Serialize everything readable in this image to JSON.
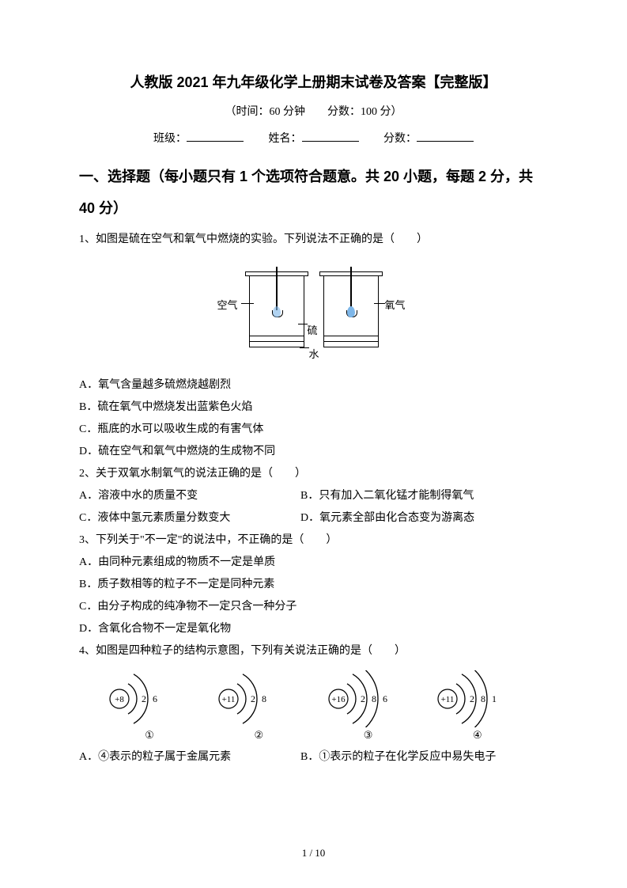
{
  "title": "人教版 2021 年九年级化学上册期末试卷及答案【完整版】",
  "subtitle": "（时间：60 分钟　　分数：100 分）",
  "fillrow": {
    "class_label": "班级：",
    "name_label": "姓名：",
    "score_label": "分数："
  },
  "section1": "一、选择题（每小题只有 1 个选项符合题意。共 20 小题，每题 2 分，共 40 分）",
  "q1": {
    "stem": "1、如图是硫在空气和氧气中燃烧的实验。下列说法不正确的是（　　）",
    "fig": {
      "air_label": "空气",
      "oxygen_label": "氧气",
      "sulfur_label": "硫",
      "water_label": "水",
      "colors": {
        "flame": "#7db6e8",
        "line": "#000000"
      }
    },
    "A": "A．氧气含量越多硫燃烧越剧烈",
    "B": "B．硫在氧气中燃烧发出蓝紫色火焰",
    "C": "C．瓶底的水可以吸收生成的有害气体",
    "D": "D．硫在空气和氧气中燃烧的生成物不同"
  },
  "q2": {
    "stem": "2、关于双氧水制氧气的说法正确的是（　　）",
    "A": "A．溶液中水的质量不变",
    "B": "B．只有加入二氧化锰才能制得氧气",
    "C": "C．液体中氢元素质量分数变大",
    "D": "D．氧元素全部由化合态变为游离态"
  },
  "q3": {
    "stem": "3、下列关于\"不一定\"的说法中，不正确的是（　　）",
    "A": "A．由同种元素组成的物质不一定是单质",
    "B": "B．质子数相等的粒子不一定是同种元素",
    "C": "C．由分子构成的纯净物不一定只含一种分子",
    "D": "D．含氧化合物不一定是氧化物"
  },
  "q4": {
    "stem": "4、如图是四种粒子的结构示意图，下列有关说法正确的是（　　）",
    "atoms": [
      {
        "nucleus": "+8",
        "shells": [
          "2",
          "6"
        ],
        "label": "①"
      },
      {
        "nucleus": "+11",
        "shells": [
          "2",
          "8"
        ],
        "label": "②"
      },
      {
        "nucleus": "+16",
        "shells": [
          "2",
          "8",
          "6"
        ],
        "label": "③"
      },
      {
        "nucleus": "+11",
        "shells": [
          "2",
          "8",
          "1"
        ],
        "label": "④"
      }
    ],
    "A": "A．④表示的粒子属于金属元素",
    "B": "B．①表示的粒子在化学反应中易失电子"
  },
  "page": "1 / 10",
  "style": {
    "page_bg": "#ffffff",
    "text_color": "#000000",
    "title_fontsize": 18,
    "body_fontsize": 14
  }
}
